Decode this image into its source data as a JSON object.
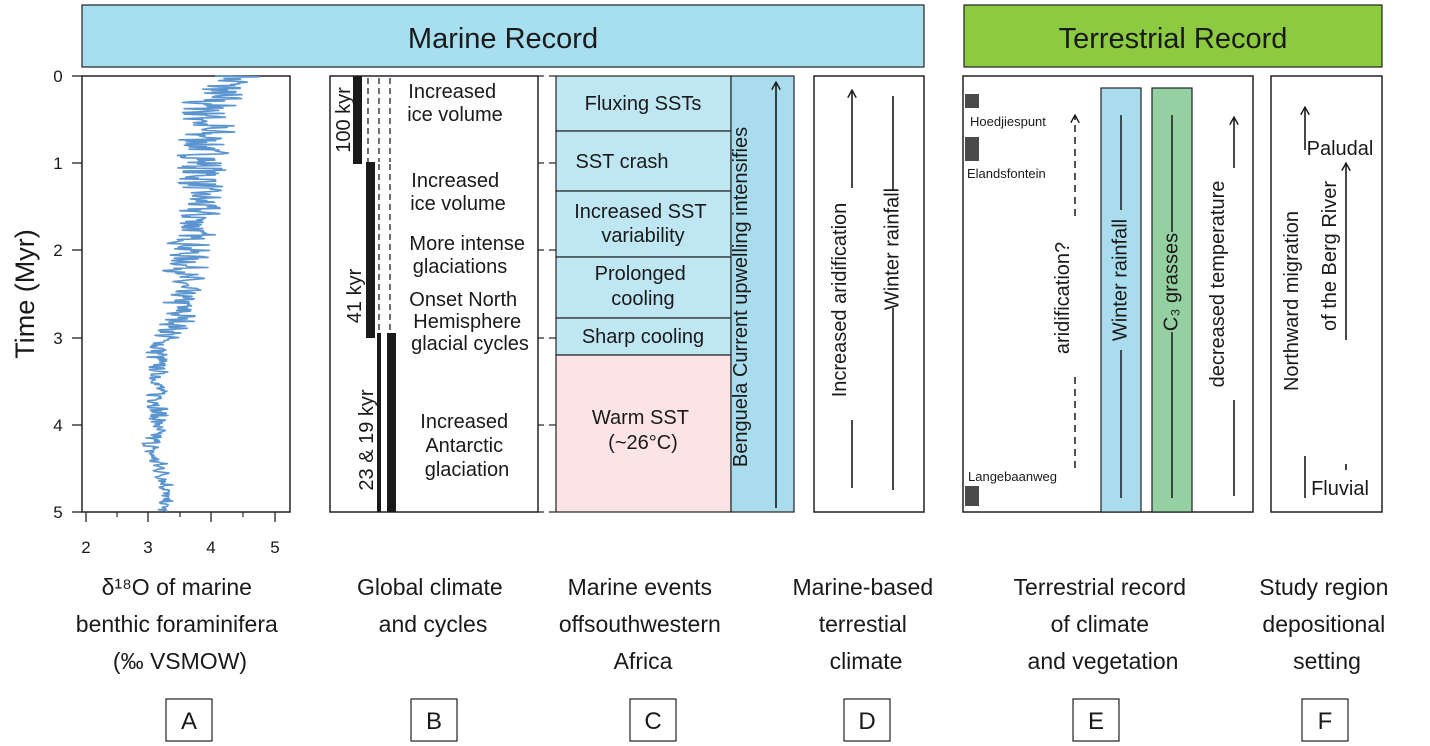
{
  "headers": {
    "marine": "Marine Record",
    "terrestrial": "Terrestrial Record",
    "marine_color": "#a7dff0",
    "terrestrial_color": "#8ccb3f"
  },
  "colors": {
    "curve": "#5b95cf",
    "sst_blue": "#bfe6f3",
    "sst_pink": "#fbe3e6",
    "winter_rainfall": "#a9dcec",
    "c3_grasses": "#94d0a2",
    "site_marker": "#4a4a4a"
  },
  "axis": {
    "ylabel": "Time (Myr)",
    "y_ticks": [
      "0",
      "1",
      "2",
      "3",
      "4",
      "5"
    ],
    "x_ticks": [
      "2",
      "3",
      "4",
      "5"
    ]
  },
  "panel_a": {
    "caption": [
      "δ¹⁸O of marine",
      "benthic foraminifera",
      "(‰ VSMOW)"
    ],
    "letter": "A"
  },
  "panel_b": {
    "cycles": [
      "100 kyr",
      "41 kyr",
      "23 & 19 kyr"
    ],
    "events": [
      [
        "Increased",
        "ice volume"
      ],
      [
        "Increased",
        "ice volume"
      ],
      [
        "More intense",
        "glaciations"
      ],
      [
        "Onset North",
        "Hemisphere",
        "glacial cycles"
      ],
      [
        "Increased",
        "Antarctic",
        "glaciation"
      ]
    ],
    "caption": [
      "Global climate",
      "and cycles"
    ],
    "letter": "B"
  },
  "panel_c": {
    "events": [
      [
        "Fluxing SSTs"
      ],
      [
        "SST crash"
      ],
      [
        "Increased SST",
        "variability"
      ],
      [
        "Prolonged",
        "cooling"
      ],
      [
        "Sharp cooling"
      ],
      [
        "Warm SST",
        "(~26°C)"
      ]
    ],
    "benguela": "Benguela Current upwelling intensifies",
    "caption": [
      "Marine events",
      "offsouthwestern",
      "Africa"
    ],
    "letter": "C"
  },
  "panel_d": {
    "arrow1": "Increased aridification",
    "arrow2": "Winter rainfall",
    "caption": [
      "Marine-based",
      "terrestial",
      "climate"
    ],
    "letter": "D"
  },
  "panel_e": {
    "sites": [
      "Hoedjiespunt",
      "Elandsfontein",
      "Langebaanweg"
    ],
    "aridification": "aridification?",
    "winter": "Winter rainfall",
    "c3": "C₃ grasses",
    "temperature": "decreased temperature",
    "caption": [
      "Terrestrial record",
      "of climate",
      "and vegetation"
    ],
    "letter": "E"
  },
  "panel_f": {
    "migration1": "Northward migration",
    "migration2": "of the Berg River",
    "paludal": "Paludal",
    "fluvial": "Fluvial",
    "caption": [
      "Study region",
      "depositional",
      "setting"
    ],
    "letter": "F"
  },
  "chart_data": {
    "type": "line",
    "xlabel": "δ¹⁸O of marine benthic foraminifera (‰ VSMOW)",
    "ylabel": "Time (Myr)",
    "xlim": [
      1.8,
      5.5
    ],
    "ylim": [
      5,
      0
    ],
    "x_ticks": [
      2,
      3,
      4,
      5
    ],
    "y_ticks": [
      0,
      1,
      2,
      3,
      4,
      5
    ],
    "trend": [
      {
        "t": 0.0,
        "c": 4.55,
        "a": 0.45
      },
      {
        "t": 0.3,
        "c": 4.05,
        "a": 0.6
      },
      {
        "t": 1.0,
        "c": 3.95,
        "a": 0.45
      },
      {
        "t": 1.5,
        "c": 3.9,
        "a": 0.4
      },
      {
        "t": 2.0,
        "c": 3.7,
        "a": 0.38
      },
      {
        "t": 2.5,
        "c": 3.55,
        "a": 0.35
      },
      {
        "t": 2.8,
        "c": 3.55,
        "a": 0.3
      },
      {
        "t": 3.1,
        "c": 3.15,
        "a": 0.22
      },
      {
        "t": 3.5,
        "c": 3.15,
        "a": 0.2
      },
      {
        "t": 4.0,
        "c": 3.15,
        "a": 0.2
      },
      {
        "t": 4.3,
        "c": 3.0,
        "a": 0.18
      },
      {
        "t": 4.5,
        "c": 3.2,
        "a": 0.18
      },
      {
        "t": 4.7,
        "c": 3.3,
        "a": 0.15
      },
      {
        "t": 5.0,
        "c": 3.25,
        "a": 0.12
      }
    ]
  }
}
